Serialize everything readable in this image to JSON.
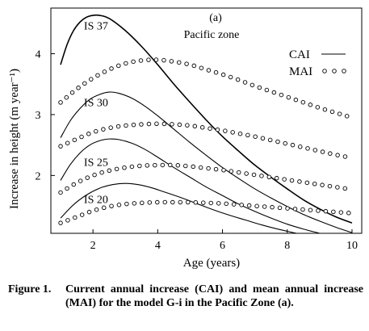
{
  "chart_data": {
    "type": "line",
    "panel_label": "(a)",
    "title": "Pacific zone",
    "xlabel": "Age (years)",
    "ylabel": "Increase in height (m year⁻¹)",
    "xlim": [
      0.7,
      10.3
    ],
    "ylim": [
      1.05,
      4.75
    ],
    "xticks": [
      2,
      4,
      6,
      8,
      10
    ],
    "yticks": [
      2,
      3,
      4
    ],
    "grid": false,
    "legend": {
      "position": "top-right",
      "entries": [
        {
          "label": "CAI",
          "style": "solid-line"
        },
        {
          "label": "MAI",
          "style": "open-circles"
        }
      ]
    },
    "series": [
      {
        "label": "IS 37",
        "kind": "CAI",
        "x": [
          1.0,
          1.2,
          1.4,
          1.6,
          1.8,
          2.0,
          2.2,
          2.5,
          3.0,
          3.5,
          4.0,
          4.5,
          5.0,
          5.5,
          6.0,
          6.5,
          7.0,
          7.5,
          8.0,
          8.5,
          9.0,
          9.5,
          10.0
        ],
        "y": [
          3.82,
          4.15,
          4.38,
          4.52,
          4.6,
          4.63,
          4.63,
          4.58,
          4.38,
          4.12,
          3.82,
          3.5,
          3.2,
          2.91,
          2.64,
          2.4,
          2.17,
          1.97,
          1.78,
          1.6,
          1.45,
          1.32,
          1.22
        ]
      },
      {
        "label": "IS 37",
        "kind": "MAI",
        "x": [
          1.0,
          1.5,
          2.0,
          2.5,
          3.0,
          3.5,
          4.0,
          4.5,
          5.0,
          5.5,
          6.0,
          6.5,
          7.0,
          7.5,
          8.0,
          8.5,
          9.0,
          9.5,
          10.0
        ],
        "y": [
          3.2,
          3.42,
          3.6,
          3.74,
          3.84,
          3.89,
          3.9,
          3.87,
          3.82,
          3.74,
          3.66,
          3.57,
          3.47,
          3.38,
          3.29,
          3.2,
          3.11,
          3.03,
          2.95
        ]
      },
      {
        "label": "IS 30",
        "kind": "CAI",
        "x": [
          1.0,
          1.3,
          1.6,
          1.9,
          2.2,
          2.5,
          2.8,
          3.2,
          3.6,
          4.0,
          4.5,
          5.0,
          5.5,
          6.0,
          6.5,
          7.0,
          7.5,
          8.0,
          8.5,
          9.0,
          9.5,
          10.0
        ],
        "y": [
          2.62,
          2.9,
          3.1,
          3.25,
          3.33,
          3.37,
          3.35,
          3.27,
          3.14,
          2.98,
          2.76,
          2.54,
          2.33,
          2.13,
          1.95,
          1.78,
          1.63,
          1.49,
          1.36,
          1.25,
          1.15,
          1.06
        ]
      },
      {
        "label": "IS 30",
        "kind": "MAI",
        "x": [
          1.0,
          1.5,
          2.0,
          2.5,
          3.0,
          3.5,
          4.0,
          4.5,
          5.0,
          5.5,
          6.0,
          6.5,
          7.0,
          7.5,
          8.0,
          8.5,
          9.0,
          9.5,
          10.0
        ],
        "y": [
          2.48,
          2.6,
          2.71,
          2.78,
          2.82,
          2.84,
          2.85,
          2.84,
          2.82,
          2.78,
          2.74,
          2.69,
          2.64,
          2.58,
          2.52,
          2.46,
          2.4,
          2.34,
          2.29
        ]
      },
      {
        "label": "IS 25",
        "kind": "CAI",
        "x": [
          1.0,
          1.3,
          1.6,
          1.9,
          2.2,
          2.5,
          2.8,
          3.2,
          3.6,
          4.0,
          4.5,
          5.0,
          5.5,
          6.0,
          6.5,
          7.0,
          7.5,
          8.0,
          8.5,
          9.0,
          9.5,
          10.0
        ],
        "y": [
          1.92,
          2.18,
          2.37,
          2.5,
          2.57,
          2.6,
          2.59,
          2.53,
          2.43,
          2.3,
          2.13,
          1.97,
          1.81,
          1.67,
          1.53,
          1.41,
          1.3,
          1.2,
          1.12,
          1.05,
          0.98,
          0.92
        ]
      },
      {
        "label": "IS 25",
        "kind": "MAI",
        "x": [
          1.0,
          1.5,
          2.0,
          2.5,
          3.0,
          3.5,
          4.0,
          4.5,
          5.0,
          5.5,
          6.0,
          6.5,
          7.0,
          7.5,
          8.0,
          8.5,
          9.0,
          9.5,
          10.0
        ],
        "y": [
          1.72,
          1.88,
          2.0,
          2.08,
          2.13,
          2.16,
          2.17,
          2.17,
          2.15,
          2.12,
          2.09,
          2.05,
          2.01,
          1.97,
          1.93,
          1.89,
          1.85,
          1.81,
          1.77
        ]
      },
      {
        "label": "IS 20",
        "kind": "CAI",
        "x": [
          1.0,
          1.4,
          1.8,
          2.2,
          2.6,
          3.0,
          3.4,
          3.8,
          4.2,
          4.7,
          5.2,
          5.7,
          6.2,
          6.7,
          7.2,
          7.7,
          8.2,
          8.7,
          9.2,
          9.7,
          10.0
        ],
        "y": [
          1.3,
          1.52,
          1.68,
          1.79,
          1.85,
          1.87,
          1.85,
          1.8,
          1.73,
          1.64,
          1.54,
          1.44,
          1.35,
          1.27,
          1.19,
          1.12,
          1.06,
          1.0,
          0.95,
          0.9,
          0.88
        ]
      },
      {
        "label": "IS 20",
        "kind": "MAI",
        "x": [
          1.0,
          1.5,
          2.0,
          2.5,
          3.0,
          3.5,
          4.0,
          4.5,
          5.0,
          5.5,
          6.0,
          6.5,
          7.0,
          7.5,
          8.0,
          8.5,
          9.0,
          9.5,
          10.0
        ],
        "y": [
          1.22,
          1.32,
          1.42,
          1.49,
          1.53,
          1.55,
          1.56,
          1.56,
          1.56,
          1.55,
          1.54,
          1.52,
          1.5,
          1.48,
          1.46,
          1.44,
          1.42,
          1.4,
          1.38
        ]
      }
    ],
    "curve_labels": [
      {
        "text": "IS 37",
        "x": 1.72,
        "y": 4.4
      },
      {
        "text": "IS 30",
        "x": 1.72,
        "y": 3.14
      },
      {
        "text": "IS 25",
        "x": 1.72,
        "y": 2.16
      },
      {
        "text": "IS 20",
        "x": 1.72,
        "y": 1.55
      }
    ]
  },
  "caption": {
    "label": "Figure 1.",
    "text": "Current annual increase (CAI) and mean annual increase (MAI) for the model G-i in the Pacific Zone (a)."
  }
}
